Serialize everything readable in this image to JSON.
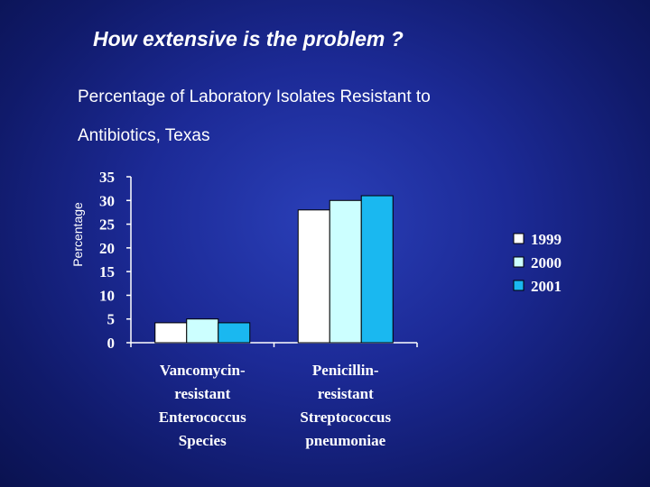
{
  "slide": {
    "title": "How extensive is the problem ?"
  },
  "chart_data": {
    "type": "bar",
    "title_line1": "Percentage of Laboratory Isolates Resistant to",
    "title_line2": "Antibiotics, Texas",
    "xlabel": "",
    "ylabel": "Percentage",
    "ylim": [
      0,
      35
    ],
    "yticks": [
      0,
      5,
      10,
      15,
      20,
      25,
      30,
      35
    ],
    "categories": [
      [
        "Vancomycin-",
        "resistant",
        "Enterococcus",
        "Species"
      ],
      [
        "Penicillin-",
        "resistant",
        "Streptococcus",
        "pneumoniae"
      ]
    ],
    "series": [
      {
        "name": "1999",
        "color": "#ffffff",
        "values": [
          4.2,
          28
        ]
      },
      {
        "name": "2000",
        "color": "#ccffff",
        "values": [
          5,
          30
        ]
      },
      {
        "name": "2001",
        "color": "#1ab8f0",
        "values": [
          4.2,
          31
        ]
      }
    ],
    "legend_position": "right",
    "grid": false
  }
}
